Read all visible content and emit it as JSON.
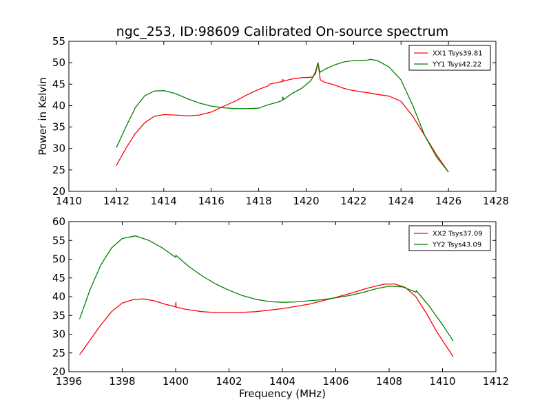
{
  "title": "ngc_253, ID:98609 Calibrated On-source spectrum",
  "xlabel": "Frequency (MHz)",
  "ylabel": "Power in Kelvin",
  "colors": {
    "red": "#ff0000",
    "green": "#008000"
  },
  "chart_data": [
    {
      "type": "line",
      "xlim": [
        1410,
        1428
      ],
      "ylim": [
        20,
        55
      ],
      "xticks": [
        1410,
        1412,
        1414,
        1416,
        1418,
        1420,
        1422,
        1424,
        1426,
        1428
      ],
      "yticks": [
        20,
        25,
        30,
        35,
        40,
        45,
        50,
        55
      ],
      "grid": false,
      "legend_position": "top-right",
      "series": [
        {
          "name": "XX1 Tsys39.81",
          "color": "#ff0000",
          "x": [
            1412.0,
            1412.4,
            1412.8,
            1413.2,
            1413.6,
            1414.0,
            1414.5,
            1415.0,
            1415.5,
            1416.0,
            1416.5,
            1417.0,
            1417.5,
            1418.0,
            1418.4,
            1418.45,
            1418.8,
            1419.0,
            1419.02,
            1419.05,
            1419.4,
            1419.8,
            1420.2,
            1420.3,
            1420.4,
            1420.5,
            1420.55,
            1420.6,
            1420.8,
            1421.2,
            1421.6,
            1422.0,
            1422.6,
            1423.0,
            1423.5,
            1424.0,
            1424.5,
            1425.0,
            1425.5,
            1426.0
          ],
          "y": [
            26.0,
            30.0,
            33.5,
            36.0,
            37.5,
            37.9,
            37.8,
            37.6,
            37.8,
            38.5,
            39.8,
            41.0,
            42.5,
            43.8,
            44.6,
            45.0,
            45.4,
            45.6,
            46.1,
            45.7,
            46.2,
            46.5,
            46.6,
            46.8,
            48.0,
            50.0,
            48.0,
            46.0,
            45.4,
            44.8,
            44.0,
            43.5,
            43.0,
            42.6,
            42.2,
            41.0,
            37.5,
            33.0,
            28.5,
            24.5
          ]
        },
        {
          "name": "YY1 Tsys42.22",
          "color": "#008000",
          "x": [
            1412.0,
            1412.4,
            1412.8,
            1413.2,
            1413.6,
            1414.0,
            1414.5,
            1415.0,
            1415.5,
            1416.0,
            1416.5,
            1417.0,
            1417.5,
            1418.0,
            1418.4,
            1418.8,
            1419.0,
            1419.02,
            1419.05,
            1419.4,
            1419.8,
            1420.2,
            1420.3,
            1420.4,
            1420.5,
            1420.55,
            1420.6,
            1420.8,
            1421.2,
            1421.6,
            1422.0,
            1422.6,
            1422.7,
            1423.0,
            1423.5,
            1424.0,
            1424.5,
            1425.0,
            1425.5,
            1426.0
          ],
          "y": [
            30.2,
            35.0,
            39.5,
            42.3,
            43.4,
            43.5,
            42.8,
            41.6,
            40.6,
            39.9,
            39.5,
            39.3,
            39.3,
            39.4,
            40.2,
            40.8,
            41.2,
            42.0,
            41.4,
            42.8,
            44.0,
            45.8,
            46.8,
            47.5,
            50.0,
            48.5,
            47.8,
            48.5,
            49.5,
            50.2,
            50.5,
            50.6,
            50.8,
            50.5,
            49.0,
            46.0,
            40.0,
            33.0,
            28.0,
            24.5
          ]
        }
      ]
    },
    {
      "type": "line",
      "xlim": [
        1396,
        1412
      ],
      "ylim": [
        20,
        60
      ],
      "xticks": [
        1396,
        1398,
        1400,
        1402,
        1404,
        1406,
        1408,
        1410,
        1412
      ],
      "yticks": [
        20,
        25,
        30,
        35,
        40,
        45,
        50,
        55,
        60
      ],
      "grid": false,
      "legend_position": "top-right",
      "series": [
        {
          "name": "XX2 Tsys37.09",
          "color": "#ff0000",
          "x": [
            1396.4,
            1396.8,
            1397.2,
            1397.6,
            1398.0,
            1398.4,
            1398.8,
            1399.2,
            1399.6,
            1400.0,
            1400.01,
            1400.02,
            1400.4,
            1401.0,
            1401.6,
            1402.2,
            1403.0,
            1404.0,
            1405.0,
            1406.0,
            1406.6,
            1407.2,
            1407.8,
            1408.2,
            1408.6,
            1409.0,
            1409.4,
            1409.8,
            1410.4
          ],
          "y": [
            24.5,
            28.5,
            32.5,
            36.0,
            38.3,
            39.2,
            39.4,
            38.9,
            38.0,
            37.3,
            38.5,
            37.2,
            36.6,
            36.0,
            35.7,
            35.7,
            36.0,
            36.8,
            38.0,
            39.8,
            41.0,
            42.3,
            43.3,
            43.4,
            42.5,
            40.0,
            35.5,
            30.5,
            24.0
          ]
        },
        {
          "name": "YY2 Tsys43.09",
          "color": "#008000",
          "x": [
            1396.4,
            1396.8,
            1397.2,
            1397.6,
            1398.0,
            1398.5,
            1399.0,
            1399.5,
            1400.0,
            1400.01,
            1400.5,
            1401.0,
            1401.5,
            1402.0,
            1402.5,
            1403.0,
            1403.5,
            1404.0,
            1404.5,
            1405.0,
            1405.5,
            1406.0,
            1406.5,
            1407.0,
            1407.5,
            1408.0,
            1408.5,
            1409.0,
            1409.02,
            1409.5,
            1410.0,
            1410.4
          ],
          "y": [
            34.0,
            42.0,
            48.5,
            53.0,
            55.5,
            56.2,
            55.0,
            53.0,
            50.5,
            51.0,
            48.0,
            45.5,
            43.4,
            41.7,
            40.3,
            39.3,
            38.7,
            38.5,
            38.6,
            38.9,
            39.2,
            39.7,
            40.3,
            41.1,
            42.1,
            42.8,
            42.6,
            41.2,
            41.6,
            37.5,
            32.5,
            28.2
          ]
        }
      ]
    }
  ]
}
